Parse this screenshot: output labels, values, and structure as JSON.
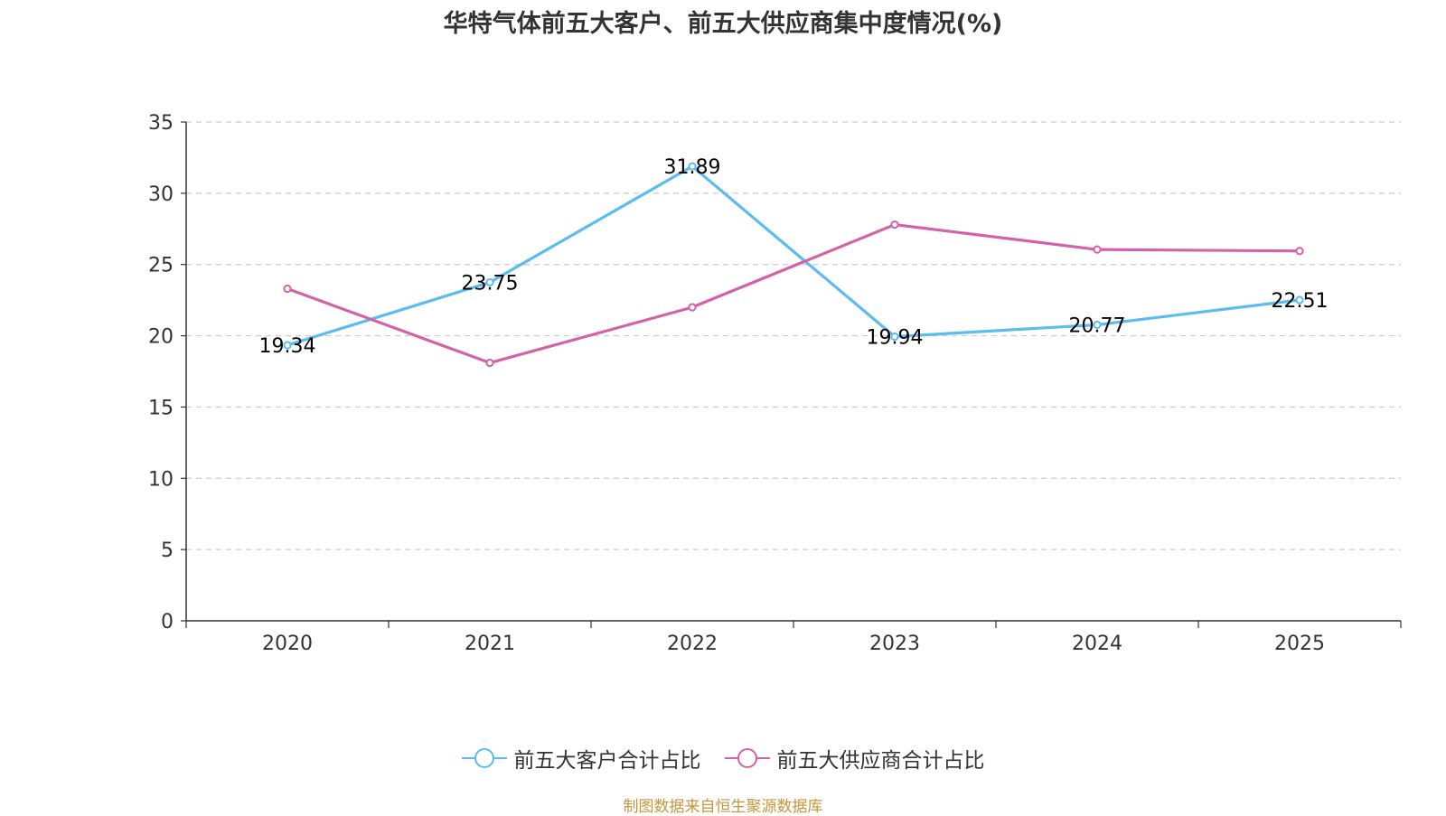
{
  "chart_data": {
    "type": "line",
    "title": "华特气体前五大客户、前五大供应商集中度情况(%)",
    "categories": [
      "2020",
      "2021",
      "2022",
      "2023",
      "2024",
      "2025"
    ],
    "ylim": [
      0,
      35
    ],
    "yticks": [
      0,
      5,
      10,
      15,
      20,
      25,
      30,
      35
    ],
    "grid": true,
    "legend_position": "bottom-center",
    "series": [
      {
        "name": "前五大客户合计占比",
        "color": "#5bbcf0",
        "values": [
          19.34,
          23.75,
          31.89,
          19.94,
          20.77,
          22.51
        ],
        "labels": [
          "19.34",
          "23.75",
          "31.89",
          "19.94",
          "20.77",
          "22.51"
        ]
      },
      {
        "name": "前五大供应商合计占比",
        "color": "#d462a8",
        "values": [
          23.3,
          18.1,
          22.0,
          27.8,
          26.05,
          25.95
        ],
        "labels": []
      }
    ],
    "source": "制图数据来自恒生聚源数据库"
  }
}
